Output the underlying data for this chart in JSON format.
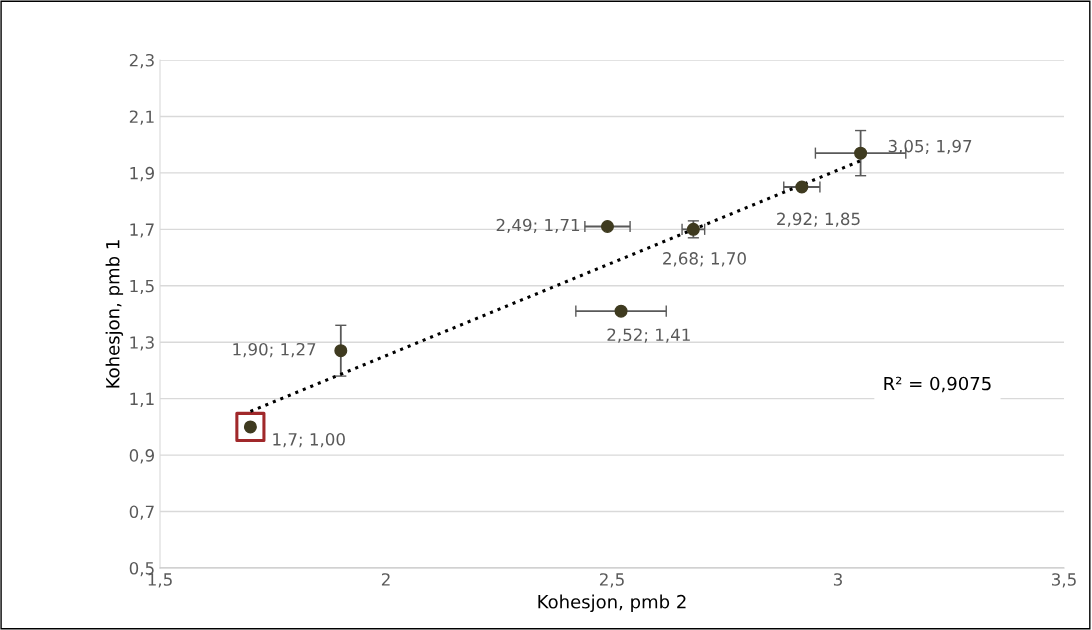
{
  "chart_data": {
    "type": "scatter",
    "xlabel": "Kohesjon, pmb 2",
    "ylabel": "Kohesjon, pmb 1",
    "xlim": [
      1.5,
      3.5
    ],
    "xticks": [
      {
        "value": 1.5,
        "label": "1,5"
      },
      2,
      {
        "value": 2.5,
        "label": "2,5"
      },
      3,
      {
        "value": 3.5,
        "label": "3,5"
      }
    ],
    "ylim": [
      0.5,
      2.3
    ],
    "yticks": [
      {
        "value": 0.5,
        "label": "0,5"
      },
      {
        "value": 0.7,
        "label": "0,7"
      },
      {
        "value": 0.9,
        "label": "0,9"
      },
      {
        "value": 1.1,
        "label": "1,1"
      },
      {
        "value": 1.3,
        "label": "1,3"
      },
      {
        "value": 1.5,
        "label": "1,5"
      },
      {
        "value": 1.7,
        "label": "1,7"
      },
      {
        "value": 1.9,
        "label": "1,9"
      },
      {
        "value": 2.1,
        "label": "2,1"
      },
      {
        "value": 2.3,
        "label": "2,3"
      }
    ],
    "grid": "y",
    "legend": false,
    "series": [
      {
        "color": "#3f3b20",
        "marker": "circle",
        "x": [
          1.7,
          1.9,
          2.49,
          2.52,
          2.68,
          2.92,
          3.05
        ],
        "values": [
          1.0,
          1.27,
          1.71,
          1.41,
          1.7,
          1.85,
          1.97
        ],
        "errors": [
          null,
          0.09,
          null,
          null,
          0.03,
          null,
          0.08
        ],
        "xerrors": [
          null,
          null,
          0.05,
          0.1,
          0.025,
          0.04,
          0.1
        ],
        "value_labels": [
          "1,7; 1,00",
          "1,90; 1,27",
          "2,49; 1,71",
          "2,52; 1,41",
          "2,68; 1,70",
          "2,92; 1,85",
          "3,05; 1,97"
        ]
      },
      {
        "color": "#a0282a",
        "marker": "square",
        "x": [
          1.7
        ],
        "values": [
          1.0
        ]
      },
      {
        "type": "line",
        "color": "#000000",
        "line_style": "dotted",
        "marker": "none",
        "x": [
          1.7,
          3.05
        ],
        "values": [
          1.055,
          1.943
        ]
      }
    ],
    "annotations": [
      "R² = 0,9075"
    ]
  }
}
